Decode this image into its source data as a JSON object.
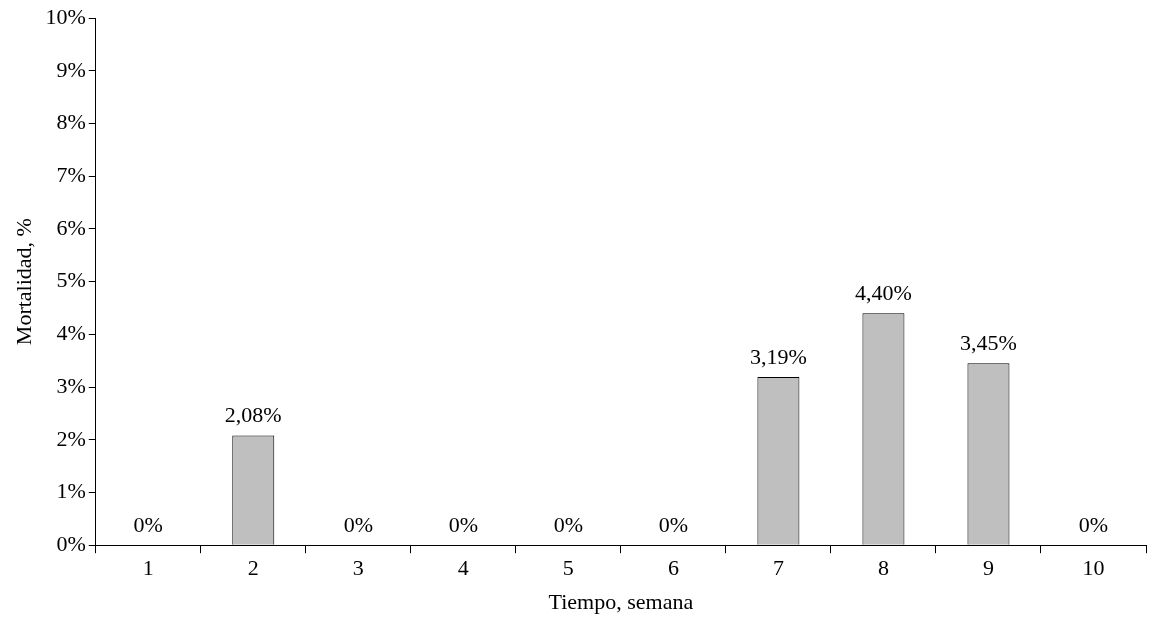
{
  "chart_data": {
    "type": "bar",
    "xlabel": "Tiempo, semana",
    "ylabel": "Mortalidad, %",
    "categories": [
      "1",
      "2",
      "3",
      "4",
      "5",
      "6",
      "7",
      "8",
      "9",
      "10"
    ],
    "values": [
      0,
      2.08,
      0,
      0,
      0,
      0,
      3.19,
      4.4,
      3.45,
      0
    ],
    "value_labels": [
      "0%",
      "2,08%",
      "0%",
      "0%",
      "0%",
      "0%",
      "3,19%",
      "4,40%",
      "3,45%",
      "0%"
    ],
    "color": "#bfbfbf",
    "ylim": [
      0,
      10
    ],
    "yticks": [
      {
        "value": 0,
        "label": "0%"
      },
      {
        "value": 1,
        "label": "1%"
      },
      {
        "value": 2,
        "label": "2%"
      },
      {
        "value": 3,
        "label": "3%"
      },
      {
        "value": 4,
        "label": "4%"
      },
      {
        "value": 5,
        "label": "5%"
      },
      {
        "value": 6,
        "label": "6%"
      },
      {
        "value": 7,
        "label": "7%"
      },
      {
        "value": 8,
        "label": "8%"
      },
      {
        "value": 9,
        "label": "9%"
      },
      {
        "value": 10,
        "label": "10%"
      }
    ],
    "grid": false,
    "legend": false
  }
}
